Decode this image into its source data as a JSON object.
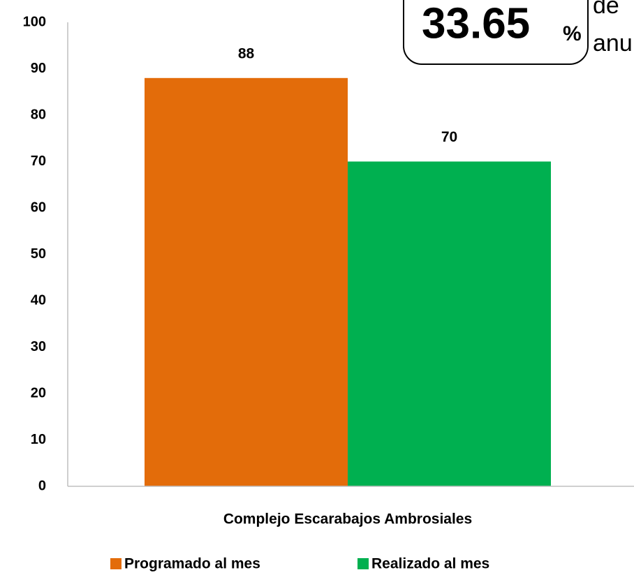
{
  "chart_data": {
    "type": "bar",
    "categories": [
      "Complejo Escarabajos Ambrosiales"
    ],
    "series": [
      {
        "name": "Programado al mes",
        "color": "#e36c0a",
        "values": [
          88
        ]
      },
      {
        "name": "Realizado al mes",
        "color": "#00b050",
        "values": [
          70
        ]
      }
    ],
    "ylim": [
      0,
      100
    ],
    "yticks": [
      0,
      10,
      20,
      30,
      40,
      50,
      60,
      70,
      80,
      90,
      100
    ],
    "grid": false,
    "legend": "bottom",
    "annotations": [
      "33.65",
      "%",
      "de",
      "anu"
    ]
  }
}
